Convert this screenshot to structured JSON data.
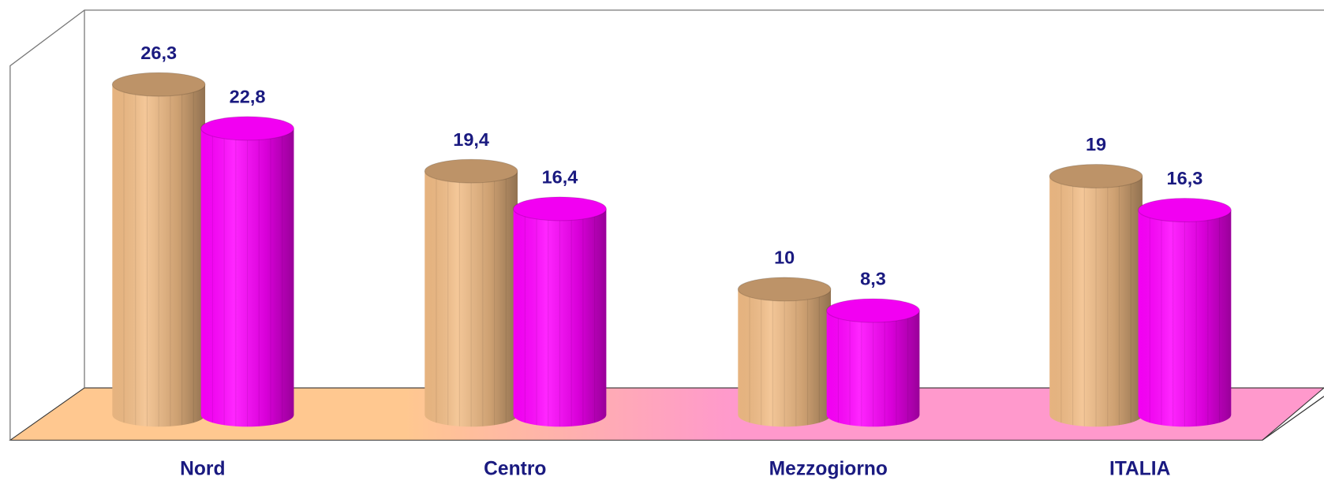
{
  "chart_data": {
    "type": "cylinder-bar",
    "categories": [
      "Nord",
      "Centro",
      "Mezzogiorno",
      "ITALIA"
    ],
    "series": [
      {
        "color": "#f2bd86",
        "values": [
          26.3,
          19.4,
          10,
          19
        ],
        "value_labels": [
          "26,3",
          "19,4",
          "10",
          "19"
        ]
      },
      {
        "color": "#ff00ff",
        "values": [
          22.8,
          16.4,
          8.3,
          16.3
        ],
        "value_labels": [
          "22,8",
          "16,4",
          "8,3",
          "16,3"
        ]
      }
    ],
    "ylim": [
      0,
      30
    ]
  }
}
